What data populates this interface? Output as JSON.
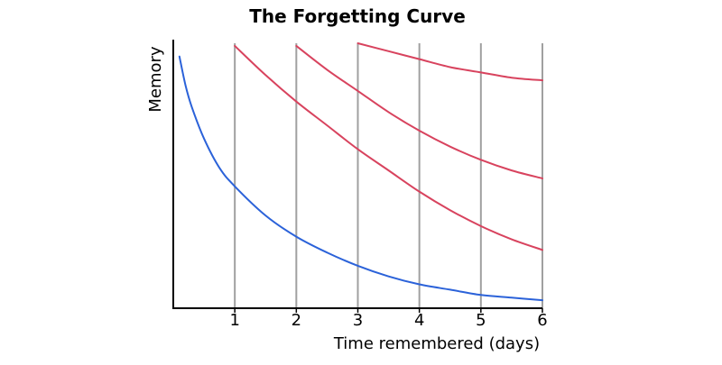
{
  "chart_data": {
    "type": "line",
    "title": "The Forgetting Curve",
    "xlabel": "Time remembered (days)",
    "ylabel": "Memory",
    "xlim": [
      0,
      6
    ],
    "ylim": [
      0,
      1
    ],
    "grid": "vertical lines at x = 1 to 6",
    "x_ticks": [
      "1",
      "2",
      "3",
      "4",
      "5",
      "6"
    ],
    "colors": {
      "initial": "#2b62d9",
      "review": "#d8435e",
      "grid": "#a0a0a0",
      "axis": "#000000"
    },
    "series": [
      {
        "color": "#2b62d9",
        "x": [
          0.1,
          0.2,
          0.3,
          0.5,
          0.75,
          1,
          1.5,
          2,
          2.5,
          3,
          3.5,
          4,
          4.5,
          5,
          5.5,
          6
        ],
        "y": [
          0.95,
          0.84,
          0.76,
          0.64,
          0.53,
          0.46,
          0.35,
          0.27,
          0.21,
          0.16,
          0.12,
          0.09,
          0.07,
          0.05,
          0.04,
          0.03
        ]
      },
      {
        "color": "#d8435e",
        "x": [
          1,
          1.5,
          2,
          2.5,
          3,
          3.5,
          4,
          4.5,
          5,
          5.5,
          6
        ],
        "y": [
          0.99,
          0.88,
          0.78,
          0.69,
          0.6,
          0.52,
          0.44,
          0.37,
          0.31,
          0.26,
          0.22
        ]
      },
      {
        "color": "#d8435e",
        "x": [
          2,
          2.5,
          3,
          3.5,
          4,
          4.5,
          5,
          5.5,
          6
        ],
        "y": [
          0.99,
          0.9,
          0.82,
          0.74,
          0.67,
          0.61,
          0.56,
          0.52,
          0.49
        ]
      },
      {
        "color": "#d8435e",
        "x": [
          3,
          3.5,
          4,
          4.5,
          5,
          5.5,
          6
        ],
        "y": [
          1.0,
          0.97,
          0.94,
          0.91,
          0.89,
          0.87,
          0.86
        ]
      }
    ]
  }
}
